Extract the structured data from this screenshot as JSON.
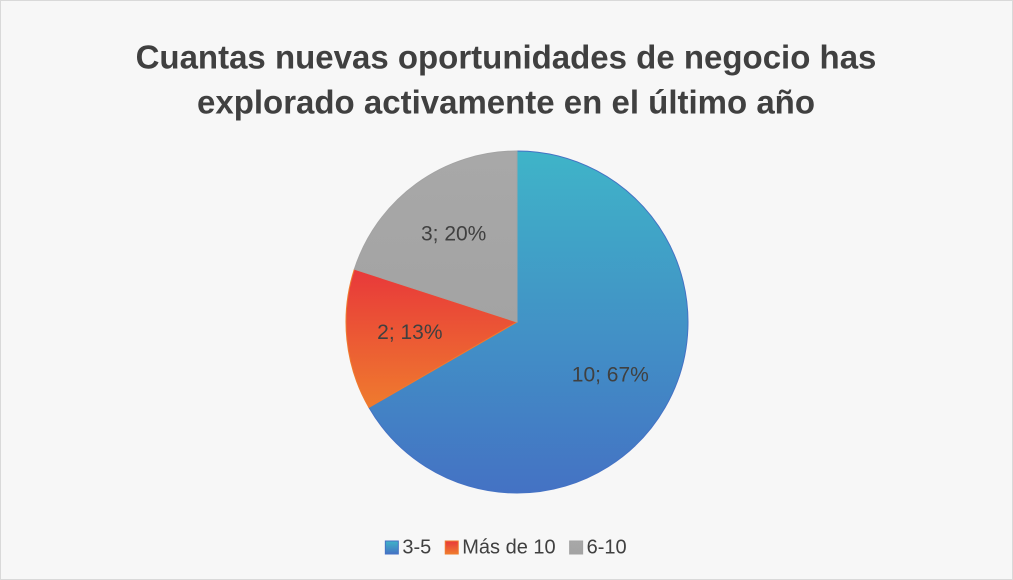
{
  "chart_data": {
    "type": "pie",
    "title": [
      "Cuantas nuevas oportunidades de negocio has",
      "explorado activamente en el último año"
    ],
    "categories": [
      "3-5",
      "Más de 10",
      "6-10"
    ],
    "values": [
      10,
      2,
      3
    ],
    "value_labels": [
      "10; 67%",
      "2; 13%",
      "3; 20%"
    ],
    "colors": [
      [
        "#3fb4c8",
        "#4472c4"
      ],
      [
        "#e8383a",
        "#ef7b2e"
      ],
      [
        "#a8a8a8",
        "#a3a3a3"
      ]
    ],
    "legend": "bottom"
  }
}
